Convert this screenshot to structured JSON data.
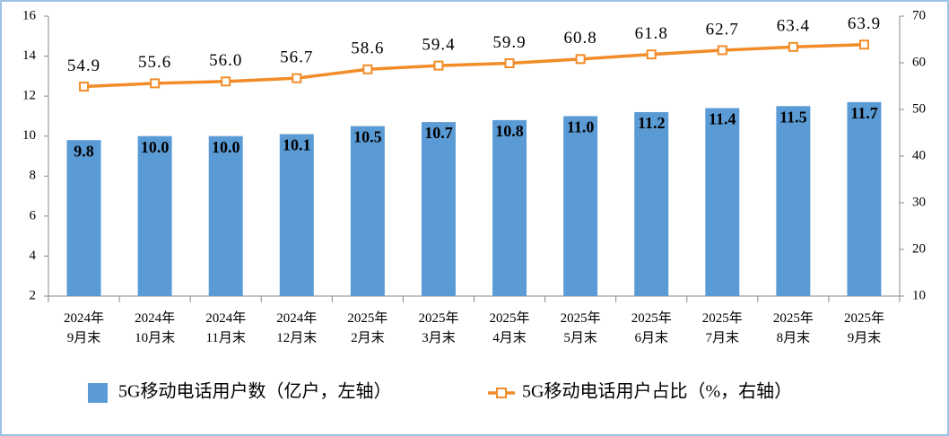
{
  "chart_data": {
    "type": "combo",
    "categories": [
      "2024年\n9月末",
      "2024年\n10月末",
      "2024年\n11月末",
      "2024年\n12月末",
      "2025年\n2月末",
      "2025年\n3月末",
      "2025年\n4月末",
      "2025年\n5月末",
      "2025年\n6月末",
      "2025年\n7月末",
      "2025年\n8月末",
      "2025年\n9月末"
    ],
    "series": [
      {
        "name": "5G移动电话用户数（亿户，左轴）",
        "type": "bar",
        "color": "#5b9bd5",
        "values": [
          9.8,
          10.0,
          10.0,
          10.1,
          10.5,
          10.7,
          10.8,
          11.0,
          11.2,
          11.4,
          11.5,
          11.7
        ],
        "value_labels": [
          "9.8",
          "10.0",
          "10.0",
          "10.1",
          "10.5",
          "10.7",
          "10.8",
          "11.0",
          "11.2",
          "11.4",
          "11.5",
          "11.7"
        ]
      },
      {
        "name": "5G移动电话用户占比（%，右轴）",
        "type": "line",
        "axis": "y2",
        "color": "#f28c28",
        "values": [
          54.9,
          55.6,
          56.0,
          56.7,
          58.6,
          59.4,
          59.9,
          60.8,
          61.8,
          62.7,
          63.4,
          63.9
        ],
        "value_labels": [
          "54.9",
          "55.6",
          "56.0",
          "56.7",
          "58.6",
          "59.4",
          "59.9",
          "60.8",
          "61.8",
          "62.7",
          "63.4",
          "63.9"
        ]
      }
    ],
    "ylim": [
      2,
      16
    ],
    "yticks": [
      2,
      4,
      6,
      8,
      10,
      12,
      14,
      16
    ],
    "y2lim": [
      10,
      70
    ],
    "y2ticks": [
      10,
      20,
      30,
      40,
      50,
      60,
      70
    ],
    "legend": "bottom"
  }
}
